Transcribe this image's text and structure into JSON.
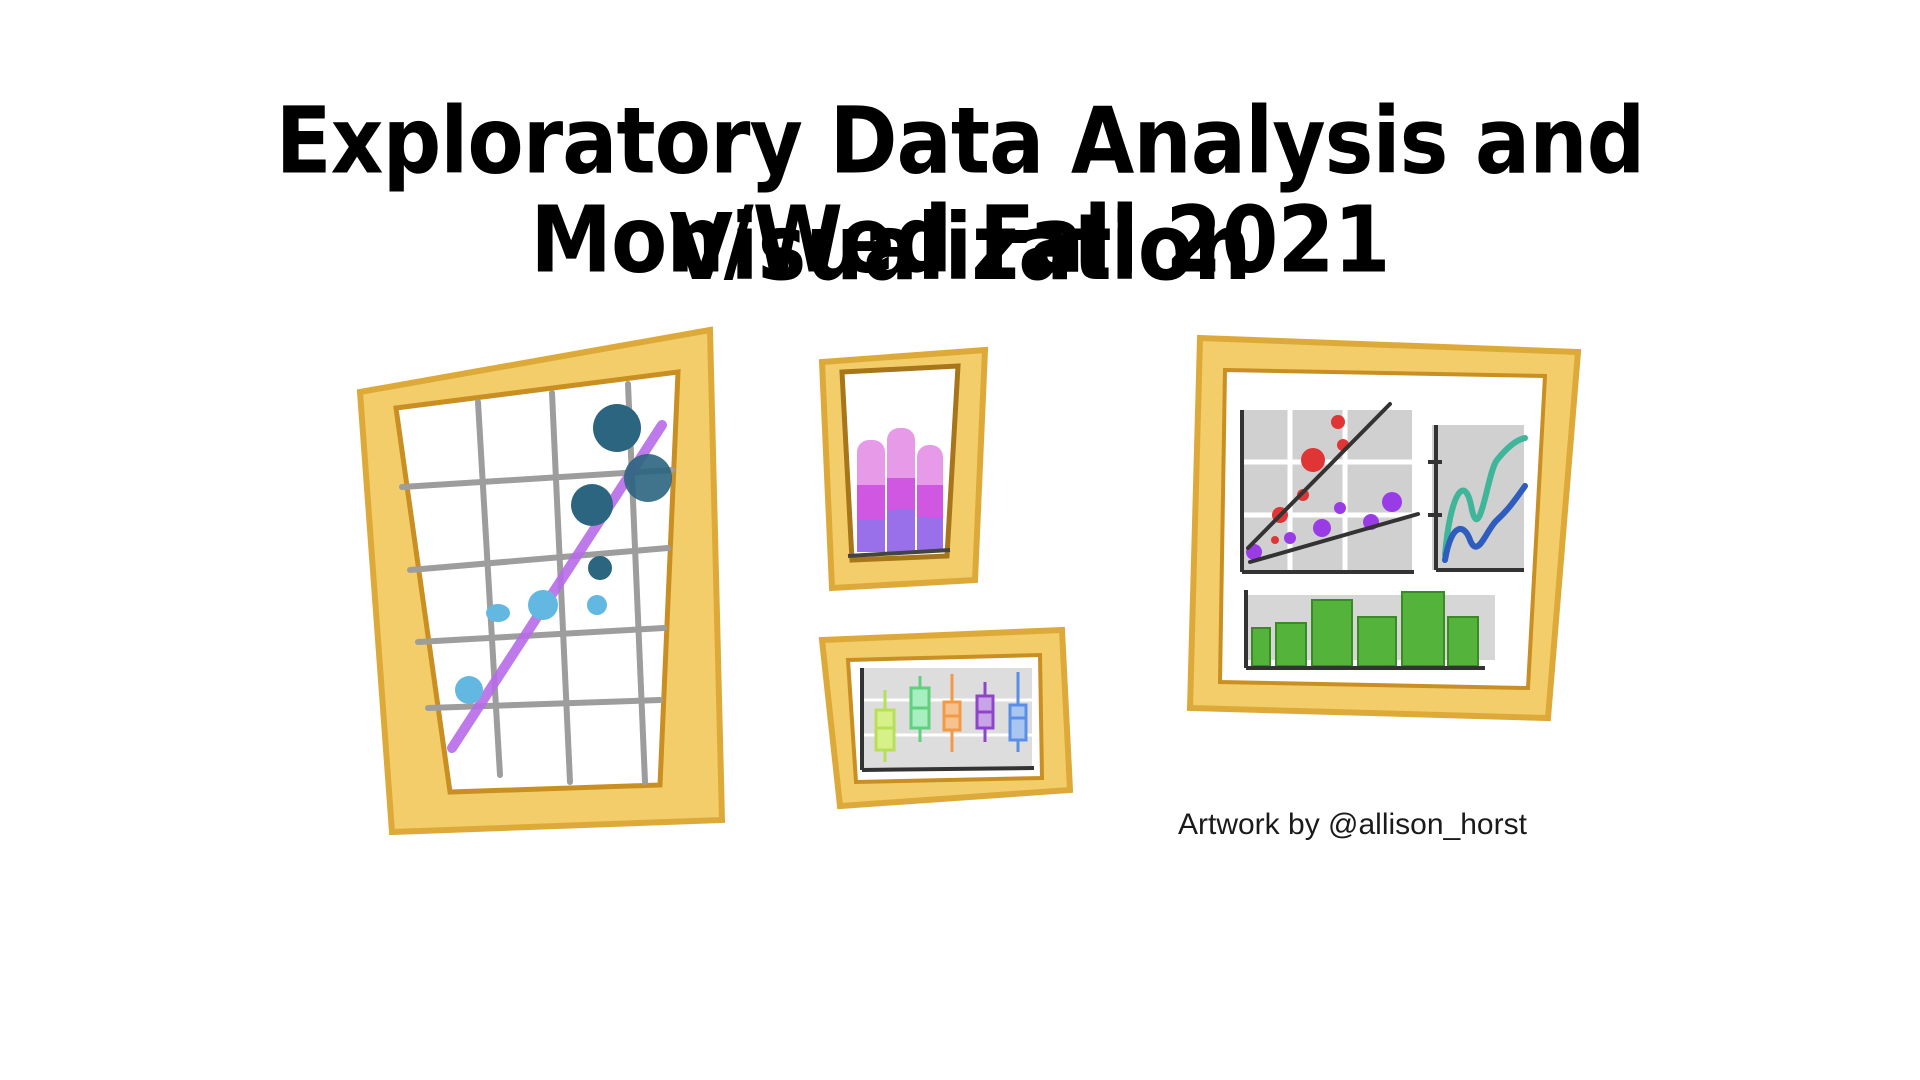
{
  "title": {
    "line1": "Exploratory Data Analysis and Visualization",
    "line2": "Mon/Wed Fall 2021"
  },
  "credit": "Artwork by @allison_horst",
  "colors": {
    "frame": "#f3cd69",
    "frame_dark": "#ddaa3a",
    "frame_edge": "#c98f22",
    "grid": "#9d9d9d",
    "panel_gray": "#d6d6d6",
    "scatter_dark": "#2b6580",
    "scatter_light": "#63b8e2",
    "trend_purple": "#b76ce8",
    "bar_green": "#54b33a",
    "red_points": "#e03535",
    "purple_points": "#9a3ce6"
  },
  "boxplot_colors": [
    "#b7e05a",
    "#5fd17e",
    "#f29a46",
    "#8d45c9",
    "#5b8ee6"
  ]
}
